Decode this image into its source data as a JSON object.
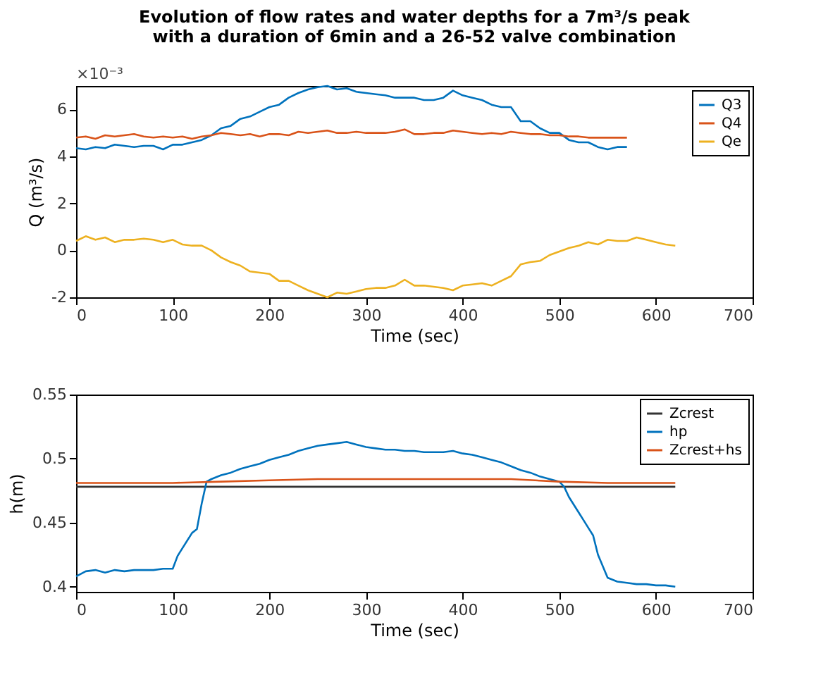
{
  "chart_data": [
    {
      "type": "line",
      "title": [
        "Evolution of flow rates and water depths for a 7m³/s peak",
        "with a duration of 6min and a 26-52 valve combination"
      ],
      "xlabel": "Time (sec)",
      "ylabel": "Q (m³/s)",
      "annotations": [
        "×10⁻³"
      ],
      "xlim": [
        0,
        700
      ],
      "xticks": [
        0,
        100,
        200,
        300,
        400,
        500,
        600,
        700
      ],
      "ylim": [
        -2,
        7
      ],
      "yticks": [
        -2,
        0,
        2,
        4,
        6
      ],
      "grid": false,
      "legend": "top right",
      "marker": "none",
      "line_style": "solid",
      "series": [
        {
          "name": "Q3",
          "color": "#0072bd",
          "x": [
            0,
            10,
            20,
            30,
            40,
            50,
            60,
            70,
            80,
            90,
            100,
            110,
            120,
            130,
            140,
            150,
            160,
            170,
            180,
            190,
            200,
            210,
            220,
            230,
            240,
            250,
            260,
            270,
            280,
            290,
            300,
            310,
            320,
            330,
            340,
            350,
            360,
            370,
            380,
            390,
            400,
            410,
            420,
            430,
            440,
            450,
            460,
            470,
            480,
            490,
            500,
            510,
            520,
            530,
            540,
            550,
            560,
            570
          ],
          "values": [
            4.35,
            4.3,
            4.4,
            4.35,
            4.5,
            4.45,
            4.4,
            4.45,
            4.45,
            4.3,
            4.5,
            4.5,
            4.6,
            4.7,
            4.9,
            5.2,
            5.3,
            5.6,
            5.7,
            5.9,
            6.1,
            6.2,
            6.5,
            6.7,
            6.85,
            6.95,
            7.0,
            6.85,
            6.9,
            6.75,
            6.7,
            6.65,
            6.6,
            6.5,
            6.5,
            6.5,
            6.4,
            6.4,
            6.5,
            6.8,
            6.6,
            6.5,
            6.4,
            6.2,
            6.1,
            6.1,
            5.5,
            5.5,
            5.2,
            5.0,
            5.0,
            4.7,
            4.6,
            4.6,
            4.4,
            4.3,
            4.4,
            4.4
          ]
        },
        {
          "name": "Q4",
          "color": "#d95319",
          "x": [
            0,
            10,
            20,
            30,
            40,
            50,
            60,
            70,
            80,
            90,
            100,
            110,
            120,
            130,
            140,
            150,
            160,
            170,
            180,
            190,
            200,
            210,
            220,
            230,
            240,
            250,
            260,
            270,
            280,
            290,
            300,
            310,
            320,
            330,
            340,
            350,
            360,
            370,
            380,
            390,
            400,
            410,
            420,
            430,
            440,
            450,
            460,
            470,
            480,
            490,
            500,
            510,
            520,
            530,
            540,
            550,
            560,
            570
          ],
          "values": [
            4.8,
            4.85,
            4.75,
            4.9,
            4.85,
            4.9,
            4.95,
            4.85,
            4.8,
            4.85,
            4.8,
            4.85,
            4.75,
            4.85,
            4.9,
            5.0,
            4.95,
            4.9,
            4.95,
            4.85,
            4.95,
            4.95,
            4.9,
            5.05,
            5.0,
            5.05,
            5.1,
            5.0,
            5.0,
            5.05,
            5.0,
            5.0,
            5.0,
            5.05,
            5.15,
            4.95,
            4.95,
            5.0,
            5.0,
            5.1,
            5.05,
            5.0,
            4.95,
            5.0,
            4.95,
            5.05,
            5.0,
            4.95,
            4.95,
            4.9,
            4.9,
            4.85,
            4.85,
            4.8,
            4.8,
            4.8,
            4.8,
            4.8
          ]
        },
        {
          "name": "Qe",
          "color": "#edb120",
          "x": [
            0,
            10,
            20,
            30,
            40,
            50,
            60,
            70,
            80,
            90,
            100,
            110,
            120,
            130,
            140,
            150,
            160,
            170,
            180,
            190,
            200,
            210,
            220,
            230,
            240,
            250,
            260,
            270,
            280,
            290,
            300,
            310,
            320,
            330,
            340,
            350,
            360,
            370,
            380,
            390,
            400,
            410,
            420,
            430,
            440,
            450,
            460,
            470,
            480,
            490,
            500,
            510,
            520,
            530,
            540,
            550,
            560,
            570,
            580,
            590,
            600,
            610,
            620
          ],
          "values": [
            0.4,
            0.6,
            0.45,
            0.55,
            0.35,
            0.45,
            0.45,
            0.5,
            0.45,
            0.35,
            0.45,
            0.25,
            0.2,
            0.2,
            0.0,
            -0.3,
            -0.5,
            -0.65,
            -0.9,
            -0.95,
            -1.0,
            -1.3,
            -1.3,
            -1.5,
            -1.7,
            -1.85,
            -2.0,
            -1.8,
            -1.85,
            -1.75,
            -1.65,
            -1.6,
            -1.6,
            -1.5,
            -1.25,
            -1.5,
            -1.5,
            -1.55,
            -1.6,
            -1.7,
            -1.5,
            -1.45,
            -1.4,
            -1.5,
            -1.3,
            -1.1,
            -0.6,
            -0.5,
            -0.45,
            -0.2,
            -0.05,
            0.1,
            0.2,
            0.35,
            0.25,
            0.45,
            0.4,
            0.4,
            0.55,
            0.45,
            0.35,
            0.25,
            0.2
          ]
        }
      ]
    },
    {
      "type": "line",
      "xlabel": "Time (sec)",
      "ylabel": "h(m)",
      "xlim": [
        0,
        700
      ],
      "xticks": [
        0,
        100,
        200,
        300,
        400,
        500,
        600,
        700
      ],
      "ylim": [
        0.396,
        0.55
      ],
      "yticks": [
        0.4,
        0.45,
        0.5,
        0.55
      ],
      "grid": false,
      "legend": "top right",
      "marker": "none",
      "line_style": "solid",
      "series": [
        {
          "name": "Zcrest",
          "color": "#333333",
          "x": [
            0,
            620
          ],
          "values": [
            0.478,
            0.478
          ]
        },
        {
          "name": "hp",
          "color": "#0072bd",
          "x": [
            0,
            10,
            20,
            30,
            40,
            50,
            60,
            70,
            80,
            90,
            100,
            105,
            110,
            120,
            125,
            130,
            135,
            140,
            150,
            160,
            170,
            180,
            190,
            200,
            210,
            220,
            230,
            240,
            250,
            260,
            270,
            280,
            290,
            300,
            310,
            320,
            330,
            340,
            350,
            360,
            370,
            380,
            390,
            400,
            410,
            420,
            430,
            440,
            450,
            460,
            470,
            480,
            490,
            500,
            505,
            510,
            520,
            525,
            530,
            535,
            540,
            550,
            560,
            570,
            580,
            590,
            600,
            610,
            620
          ],
          "values": [
            0.408,
            0.412,
            0.413,
            0.411,
            0.413,
            0.412,
            0.413,
            0.413,
            0.413,
            0.414,
            0.414,
            0.424,
            0.43,
            0.442,
            0.445,
            0.465,
            0.482,
            0.484,
            0.487,
            0.489,
            0.492,
            0.494,
            0.496,
            0.499,
            0.501,
            0.503,
            0.506,
            0.508,
            0.51,
            0.511,
            0.512,
            0.513,
            0.511,
            0.509,
            0.508,
            0.507,
            0.507,
            0.506,
            0.506,
            0.505,
            0.505,
            0.505,
            0.506,
            0.504,
            0.503,
            0.501,
            0.499,
            0.497,
            0.494,
            0.491,
            0.489,
            0.486,
            0.484,
            0.482,
            0.478,
            0.47,
            0.458,
            0.452,
            0.446,
            0.44,
            0.425,
            0.407,
            0.404,
            0.403,
            0.402,
            0.402,
            0.401,
            0.401,
            0.4
          ]
        },
        {
          "name": "Zcrest+hs",
          "color": "#d95319",
          "x": [
            0,
            100,
            150,
            200,
            250,
            300,
            350,
            400,
            450,
            500,
            550,
            620
          ],
          "values": [
            0.481,
            0.481,
            0.482,
            0.483,
            0.484,
            0.484,
            0.484,
            0.484,
            0.484,
            0.482,
            0.481,
            0.481
          ]
        }
      ]
    }
  ]
}
